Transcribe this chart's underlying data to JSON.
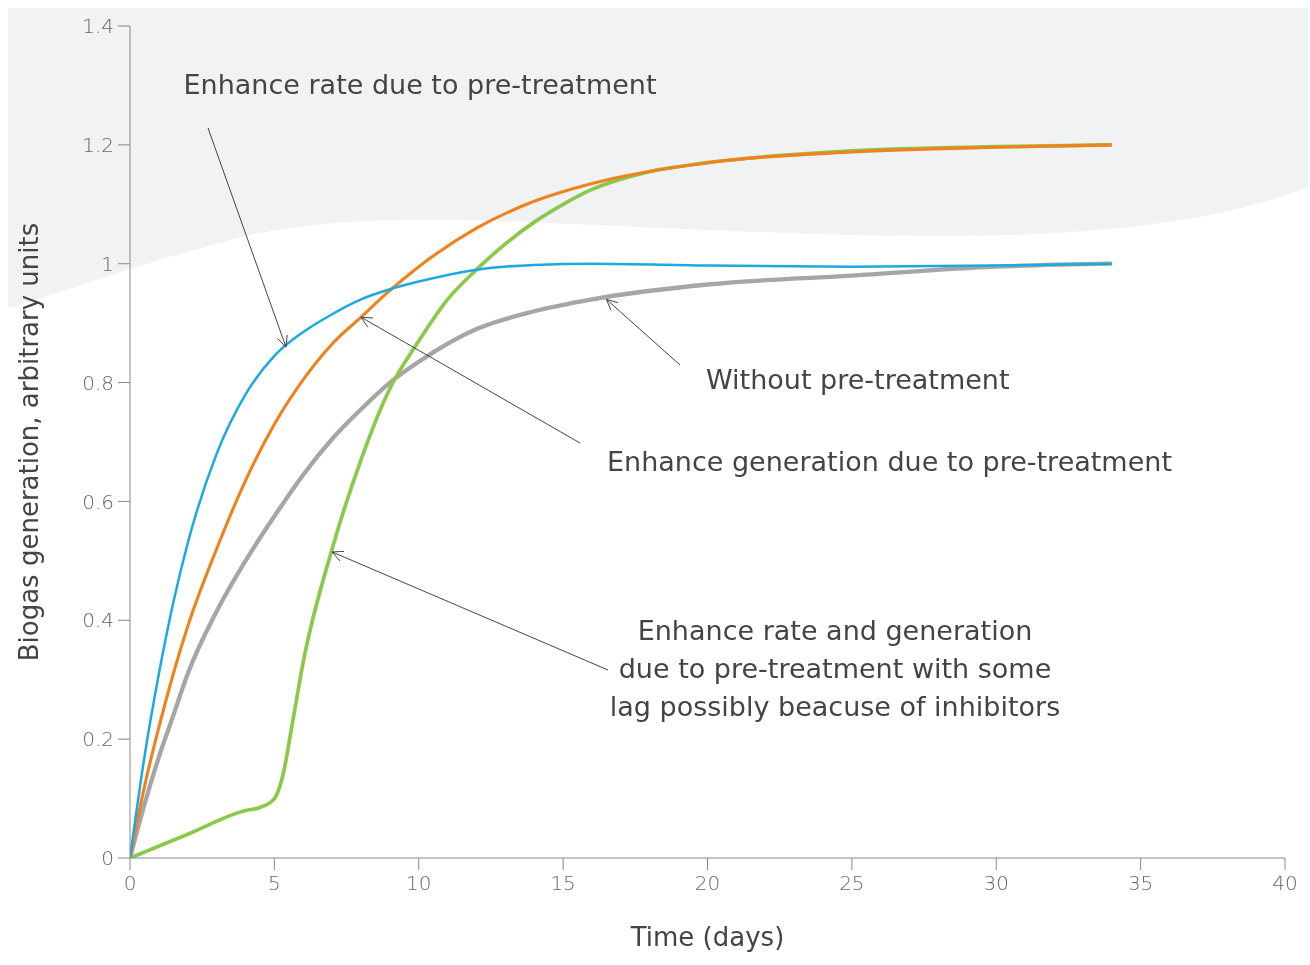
{
  "chart_data": {
    "type": "line",
    "xlabel": "Time (days)",
    "ylabel": "Biogas generation, arbitrary units",
    "xlim": [
      0,
      40
    ],
    "xticks": [
      0,
      5,
      10,
      15,
      20,
      25,
      30,
      35,
      40
    ],
    "ylim": [
      0,
      1.4
    ],
    "yticks": [
      0,
      0.2,
      0.4,
      0.6,
      0.8,
      1,
      1.2,
      1.4
    ],
    "x": [
      0,
      0.5,
      1,
      1.5,
      2,
      3,
      4,
      5,
      6,
      7,
      8,
      9,
      10,
      12,
      14,
      16,
      20,
      25,
      30,
      34
    ],
    "series": [
      {
        "color": "#a6a6a6",
        "values": [
          0,
          0.09,
          0.17,
          0.24,
          0.31,
          0.415,
          0.5,
          0.575,
          0.645,
          0.705,
          0.755,
          0.8,
          0.835,
          0.89,
          0.92,
          0.94,
          0.965,
          0.98,
          0.995,
          1.0
        ]
      },
      {
        "color": "#8cc84b",
        "x": [
          0,
          2,
          4,
          4.5,
          5,
          5.3,
          5.6,
          6,
          7,
          8,
          9,
          10,
          11,
          12,
          14,
          15,
          16,
          18,
          20,
          25,
          30,
          34
        ],
        "values": [
          0,
          0.04,
          0.08,
          0.085,
          0.1,
          0.14,
          0.22,
          0.33,
          0.52,
          0.67,
          0.79,
          0.87,
          0.94,
          0.99,
          1.07,
          1.1,
          1.125,
          1.155,
          1.17,
          1.19,
          1.197,
          1.2
        ]
      },
      {
        "color": "#f0821e",
        "values": [
          0,
          0.12,
          0.22,
          0.31,
          0.39,
          0.52,
          0.635,
          0.73,
          0.805,
          0.865,
          0.91,
          0.955,
          0.995,
          1.06,
          1.105,
          1.135,
          1.17,
          1.188,
          1.196,
          1.2
        ]
      },
      {
        "color": "#1ba9e1",
        "values": [
          0,
          0.17,
          0.31,
          0.43,
          0.53,
          0.68,
          0.78,
          0.845,
          0.885,
          0.915,
          0.94,
          0.957,
          0.97,
          0.99,
          0.998,
          1.0,
          0.997,
          0.995,
          0.997,
          1.0
        ]
      }
    ],
    "annotations": [
      {
        "text": "Enhance rate due to pre-treatment",
        "x": 5.4,
        "y": 0.86
      },
      {
        "text": "Without pre-treatment",
        "x": 16.5,
        "y": 0.94
      },
      {
        "text": "Enhance generation due to pre-treatment",
        "x": 8,
        "y": 0.91
      },
      {
        "text": "Enhance rate and generation\ndue to pre-treatment with some\nlag possibly beacuse of inhibitors",
        "x": 7,
        "y": 0.515
      }
    ]
  }
}
